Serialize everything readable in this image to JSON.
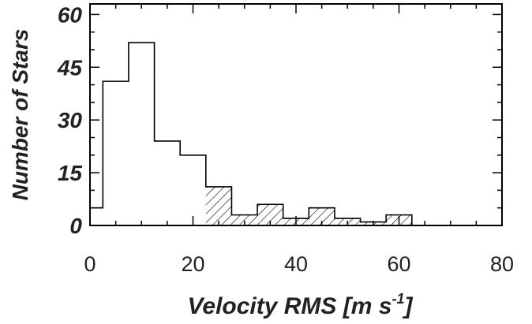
{
  "chart_data": {
    "type": "bar",
    "subtype": "step-histogram",
    "xlabel": "Velocity RMS [m s",
    "xlabel_superscript": "-1",
    "xlabel_suffix": "]",
    "ylabel": "Number of Stars",
    "xlim": [
      0,
      80
    ],
    "ylim": [
      0,
      63
    ],
    "xticks": [
      "0",
      "20",
      "40",
      "60",
      "80"
    ],
    "yticks": [
      "0",
      "15",
      "30",
      "45",
      "60"
    ],
    "bin_edges": [
      0,
      2.5,
      7.5,
      12.5,
      17.5,
      22.5,
      27.5,
      32.5,
      37.5,
      42.5,
      47.5,
      52.5,
      57.5,
      62.5,
      80
    ],
    "counts": [
      5,
      41,
      52,
      24,
      20,
      11,
      3,
      6,
      2,
      5,
      2,
      1,
      3,
      0
    ],
    "hatched_from_x": 22.5,
    "grid": false,
    "colors": {
      "line": "#000000",
      "text": "#222222"
    }
  }
}
